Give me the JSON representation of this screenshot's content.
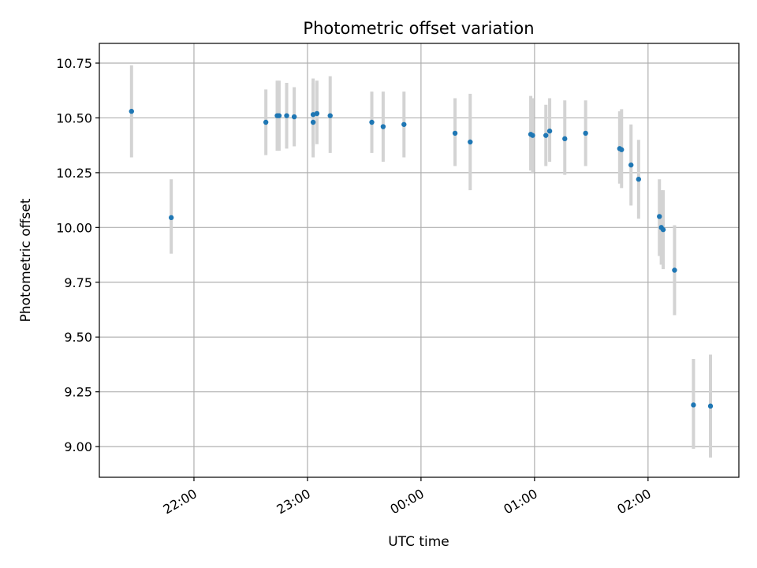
{
  "chart_data": {
    "type": "scatter",
    "title": "Photometric offset variation",
    "xlabel": "UTC time",
    "ylabel": "Photometric offset",
    "grid": true,
    "xlim": [
      "21:10",
      "02:48"
    ],
    "ylim": [
      8.86,
      10.84
    ],
    "xticks": [
      "22:00",
      "23:00",
      "00:00",
      "01:00",
      "02:00"
    ],
    "yticks": [
      "9.00",
      "9.25",
      "9.50",
      "9.75",
      "10.00",
      "10.25",
      "10.50",
      "10.75"
    ],
    "colors": {
      "marker": "#1f77b4",
      "errorbar": "#d3d3d3",
      "grid": "#b0b0b0"
    },
    "points": [
      {
        "t": "21:27",
        "y": 10.53,
        "lo": 10.32,
        "hi": 10.74
      },
      {
        "t": "21:48",
        "y": 10.045,
        "lo": 9.88,
        "hi": 10.22
      },
      {
        "t": "22:38",
        "y": 10.48,
        "lo": 10.33,
        "hi": 10.63
      },
      {
        "t": "22:44",
        "y": 10.51,
        "lo": 10.35,
        "hi": 10.67
      },
      {
        "t": "22:45",
        "y": 10.51,
        "lo": 10.35,
        "hi": 10.67
      },
      {
        "t": "22:49",
        "y": 10.51,
        "lo": 10.36,
        "hi": 10.66
      },
      {
        "t": "22:53",
        "y": 10.505,
        "lo": 10.37,
        "hi": 10.64
      },
      {
        "t": "23:03",
        "y": 10.48,
        "lo": 10.32,
        "hi": 10.68
      },
      {
        "t": "23:03",
        "y": 10.515,
        "lo": 10.37,
        "hi": 10.66
      },
      {
        "t": "23:05",
        "y": 10.52,
        "lo": 10.38,
        "hi": 10.67
      },
      {
        "t": "23:12",
        "y": 10.51,
        "lo": 10.34,
        "hi": 10.69
      },
      {
        "t": "23:34",
        "y": 10.48,
        "lo": 10.34,
        "hi": 10.62
      },
      {
        "t": "23:40",
        "y": 10.46,
        "lo": 10.3,
        "hi": 10.62
      },
      {
        "t": "23:51",
        "y": 10.47,
        "lo": 10.32,
        "hi": 10.62
      },
      {
        "t": "00:18",
        "y": 10.43,
        "lo": 10.28,
        "hi": 10.59
      },
      {
        "t": "00:26",
        "y": 10.39,
        "lo": 10.17,
        "hi": 10.61
      },
      {
        "t": "00:58",
        "y": 10.425,
        "lo": 10.26,
        "hi": 10.6
      },
      {
        "t": "00:59",
        "y": 10.42,
        "lo": 10.25,
        "hi": 10.59
      },
      {
        "t": "01:06",
        "y": 10.42,
        "lo": 10.28,
        "hi": 10.56
      },
      {
        "t": "01:08",
        "y": 10.44,
        "lo": 10.3,
        "hi": 10.59
      },
      {
        "t": "01:16",
        "y": 10.405,
        "lo": 10.24,
        "hi": 10.58
      },
      {
        "t": "01:27",
        "y": 10.43,
        "lo": 10.28,
        "hi": 10.58
      },
      {
        "t": "01:45",
        "y": 10.36,
        "lo": 10.2,
        "hi": 10.53
      },
      {
        "t": "01:46",
        "y": 10.355,
        "lo": 10.18,
        "hi": 10.54
      },
      {
        "t": "01:51",
        "y": 10.285,
        "lo": 10.1,
        "hi": 10.47
      },
      {
        "t": "01:55",
        "y": 10.22,
        "lo": 10.04,
        "hi": 10.4
      },
      {
        "t": "02:06",
        "y": 10.05,
        "lo": 9.87,
        "hi": 10.22
      },
      {
        "t": "02:07",
        "y": 10.0,
        "lo": 9.83,
        "hi": 10.17
      },
      {
        "t": "02:08",
        "y": 9.99,
        "lo": 9.81,
        "hi": 10.17
      },
      {
        "t": "02:14",
        "y": 9.805,
        "lo": 9.6,
        "hi": 10.01
      },
      {
        "t": "02:24",
        "y": 9.19,
        "lo": 8.99,
        "hi": 9.4
      },
      {
        "t": "02:33",
        "y": 9.185,
        "lo": 8.95,
        "hi": 9.42
      }
    ]
  }
}
